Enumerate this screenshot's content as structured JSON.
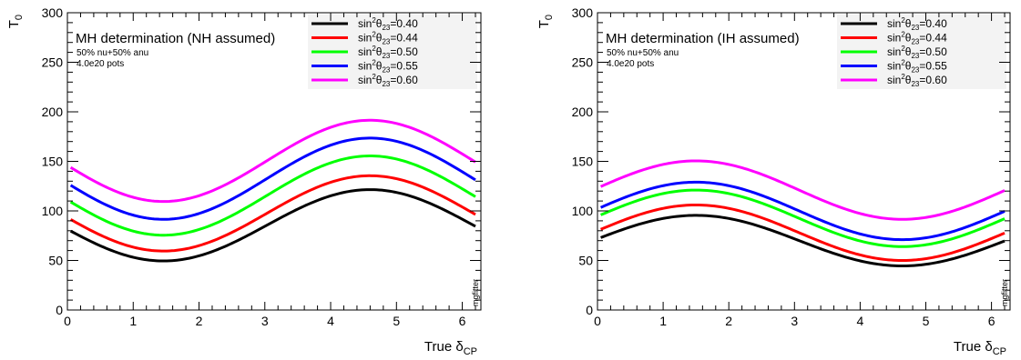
{
  "chart_data": [
    {
      "type": "line",
      "title": "MH determination (NH assumed)",
      "annotations": [
        "50% nu+50% anu",
        "4.0e20 pots"
      ],
      "watermark": "mgfitter",
      "xlabel_main": "True δ",
      "xlabel_sub": "CP",
      "ylabel_main": "T",
      "ylabel_sub": "0",
      "xlim": [
        0,
        6.283
      ],
      "ylim": [
        0,
        300
      ],
      "xticks": [
        "0",
        "1",
        "2",
        "3",
        "4",
        "5",
        "6"
      ],
      "yticks": [
        "0",
        "50",
        "100",
        "150",
        "200",
        "250",
        "300"
      ],
      "grid": false,
      "legend_position": "top-right",
      "x_start": 0.05,
      "x_end": 6.2,
      "series": [
        {
          "name": "0.40",
          "color": "#000000",
          "center": 85.5,
          "amplitude": 36,
          "phase": 4.6
        },
        {
          "name": "0.44",
          "color": "#ff0000",
          "center": 97.5,
          "amplitude": 38,
          "phase": 4.6
        },
        {
          "name": "0.50",
          "color": "#00ff00",
          "center": 115.5,
          "amplitude": 40,
          "phase": 4.6
        },
        {
          "name": "0.55",
          "color": "#0000ff",
          "center": 132.5,
          "amplitude": 41,
          "phase": 4.6
        },
        {
          "name": "0.60",
          "color": "#ff00ff",
          "center": 150.5,
          "amplitude": 41,
          "phase": 4.6
        }
      ],
      "legend_label_prefix": "sin",
      "legend_label_sup": "2",
      "legend_label_theta": "θ",
      "legend_label_sub": "23",
      "legend_label_eq": "="
    },
    {
      "type": "line",
      "title": "MH determination (IH assumed)",
      "annotations": [
        "50% nu+50% anu",
        "4.0e20 pots"
      ],
      "watermark": "mgfitter",
      "xlabel_main": "True δ",
      "xlabel_sub": "CP",
      "ylabel_main": "T",
      "ylabel_sub": "0",
      "xlim": [
        0,
        6.283
      ],
      "ylim": [
        0,
        300
      ],
      "xticks": [
        "0",
        "1",
        "2",
        "3",
        "4",
        "5",
        "6"
      ],
      "yticks": [
        "0",
        "50",
        "100",
        "150",
        "200",
        "250",
        "300"
      ],
      "grid": false,
      "legend_position": "top-right",
      "x_start": 0.05,
      "x_end": 6.2,
      "series": [
        {
          "name": "0.40",
          "color": "#000000",
          "center": 70,
          "amplitude": 25.5,
          "phase": 1.5
        },
        {
          "name": "0.44",
          "color": "#ff0000",
          "center": 78,
          "amplitude": 28,
          "phase": 1.5
        },
        {
          "name": "0.50",
          "color": "#00ff00",
          "center": 92.5,
          "amplitude": 28.5,
          "phase": 1.5
        },
        {
          "name": "0.55",
          "color": "#0000ff",
          "center": 100,
          "amplitude": 29,
          "phase": 1.5
        },
        {
          "name": "0.60",
          "color": "#ff00ff",
          "center": 121,
          "amplitude": 29.5,
          "phase": 1.5
        }
      ],
      "legend_label_prefix": "sin",
      "legend_label_sup": "2",
      "legend_label_theta": "θ",
      "legend_label_sub": "23",
      "legend_label_eq": "="
    }
  ]
}
